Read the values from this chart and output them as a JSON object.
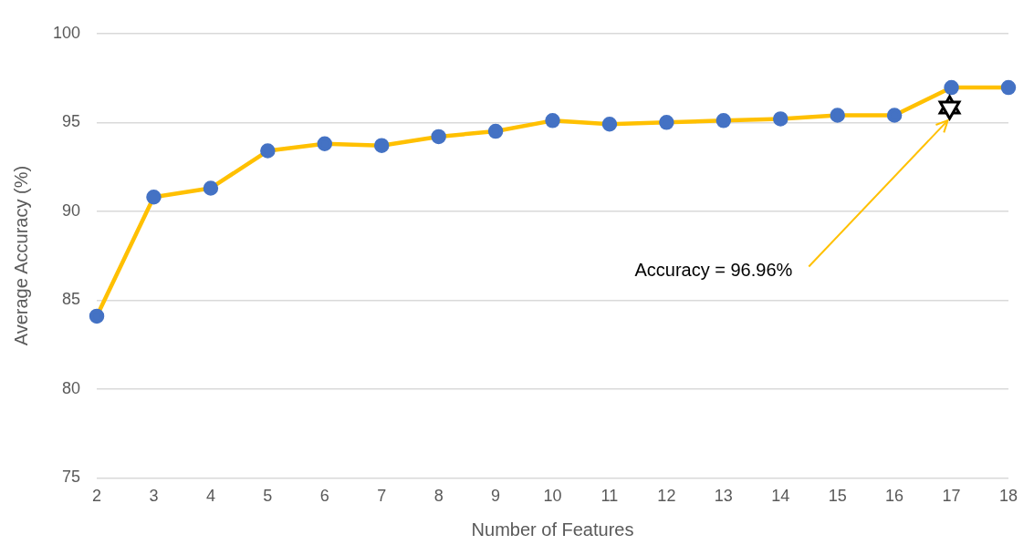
{
  "chart_data": {
    "type": "line",
    "xlabel": "Number of Features",
    "ylabel": "Average Accuracy (%)",
    "categories": [
      "2",
      "3",
      "4",
      "5",
      "6",
      "7",
      "8",
      "9",
      "10",
      "11",
      "12",
      "13",
      "14",
      "15",
      "16",
      "17",
      "18"
    ],
    "series": [
      {
        "color": "#ffc000",
        "colors": [
          "#4472c4",
          "#4472c4",
          "#4472c4",
          "#4472c4",
          "#4472c4",
          "#4472c4",
          "#4472c4",
          "#4472c4",
          "#4472c4",
          "#4472c4",
          "#4472c4",
          "#4472c4",
          "#4472c4",
          "#4472c4",
          "#4472c4",
          "#4472c4",
          "#4472c4"
        ],
        "values": [
          84.1,
          90.8,
          91.3,
          93.4,
          93.8,
          93.7,
          94.2,
          94.5,
          95.1,
          94.9,
          95.0,
          95.1,
          95.2,
          95.4,
          95.4,
          96.96,
          96.96
        ]
      }
    ],
    "marker": "circle",
    "line_style": "solid",
    "ylim": [
      75,
      100
    ],
    "yticks": [
      75,
      80,
      85,
      90,
      95,
      100
    ],
    "grid": "y",
    "legend": false,
    "annotations": [
      "Accuracy = 96.96%"
    ]
  }
}
